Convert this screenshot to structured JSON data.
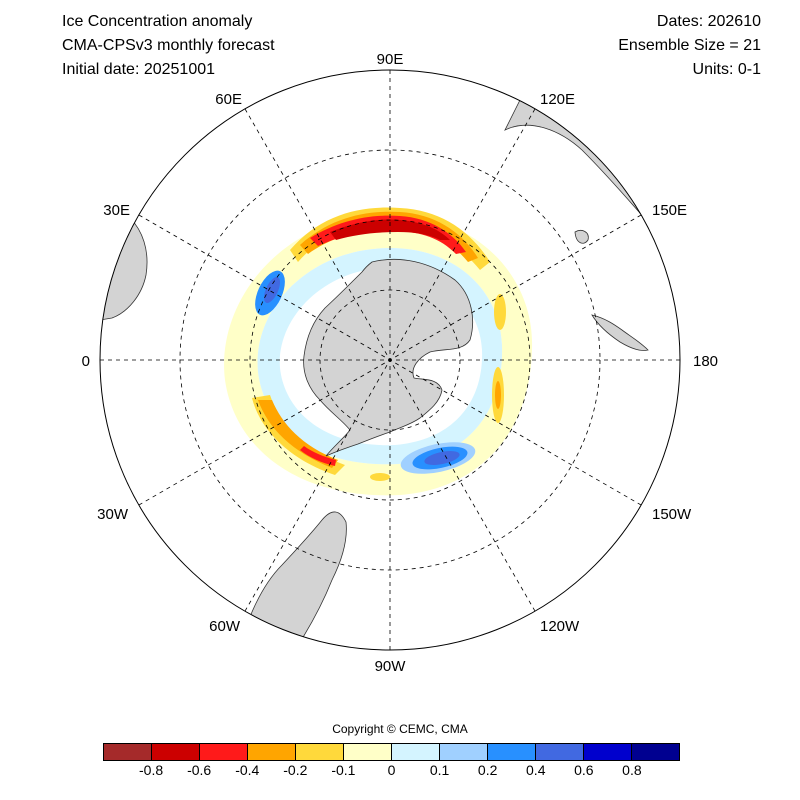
{
  "header": {
    "title": "Ice Concentration anomaly",
    "model": "CMA-CPSv3 monthly forecast",
    "initial_date": "Initial date: 20251001",
    "dates": "Dates: 202610",
    "ensemble": "Ensemble Size = 21",
    "units": "Units: 0-1"
  },
  "map": {
    "longitude_labels": {
      "n90e": "90E",
      "n120e": "120E",
      "n150e": "150E",
      "n180": "180",
      "n150w": "150W",
      "n120w": "120W",
      "n90w": "90W",
      "n60w": "60W",
      "n30w": "30W",
      "n0": "0",
      "n30e": "30E",
      "n60e": "60E"
    }
  },
  "copyright": "Copyright © CEMC, CMA",
  "colorbar": {
    "colors": [
      "#a52a2a",
      "#cc0000",
      "#ff1a1a",
      "#ffa500",
      "#ffd93b",
      "#ffffc8",
      "#d4f4ff",
      "#a0d0ff",
      "#2890ff",
      "#4169e1",
      "#0000cd",
      "#000090"
    ],
    "ticks": [
      "-0.8",
      "-0.6",
      "-0.4",
      "-0.2",
      "-0.1",
      "0",
      "0.1",
      "0.2",
      "0.4",
      "0.6",
      "0.8"
    ]
  }
}
